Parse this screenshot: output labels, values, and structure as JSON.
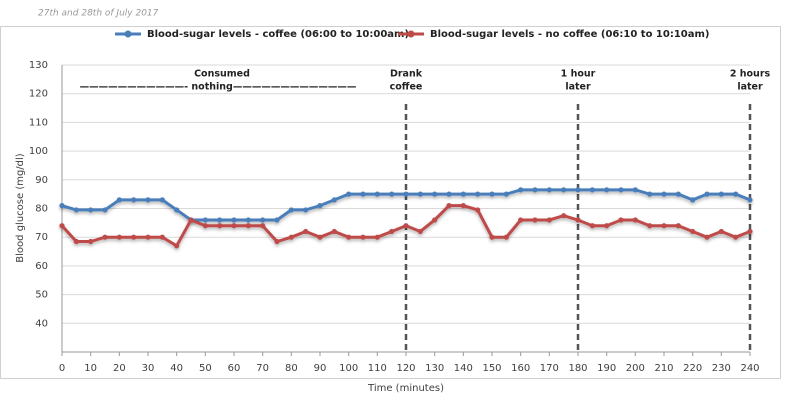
{
  "chart_data": {
    "type": "line",
    "subtitle": "27th and 28th of July 2017",
    "x_label": "Time (minutes)",
    "y_label": "Blood glucose (mg/dl)",
    "x": [
      0,
      5,
      10,
      15,
      20,
      25,
      30,
      35,
      40,
      45,
      50,
      55,
      60,
      65,
      70,
      75,
      80,
      85,
      90,
      95,
      100,
      105,
      110,
      115,
      120,
      125,
      130,
      135,
      140,
      145,
      150,
      155,
      160,
      165,
      170,
      175,
      180,
      185,
      190,
      195,
      200,
      205,
      210,
      215,
      220,
      225,
      230,
      235,
      240
    ],
    "series": [
      {
        "name": "Blood-sugar levels - coffee (06:00 to 10:00am)",
        "color": "#4a7ebb",
        "values": [
          81,
          79.5,
          79.5,
          79.5,
          83,
          83,
          83,
          83,
          79.5,
          76,
          76,
          76,
          76,
          76,
          76,
          76,
          79.5,
          79.5,
          81,
          83,
          85,
          85,
          85,
          85,
          85,
          85,
          85,
          85,
          85,
          85,
          85,
          85,
          86.5,
          86.5,
          86.5,
          86.5,
          86.5,
          86.5,
          86.5,
          86.5,
          86.5,
          85,
          85,
          85,
          83,
          85,
          85,
          85,
          83
        ]
      },
      {
        "name": "Blood-sugar levels - no coffee (06:10 to 10:10am)",
        "color": "#be4b48",
        "values": [
          74,
          68.5,
          68.5,
          70,
          70,
          70,
          70,
          70,
          67,
          76,
          74,
          74,
          74,
          74,
          74,
          68.5,
          70,
          72,
          70,
          72,
          70,
          70,
          70,
          72,
          74,
          72,
          76,
          81,
          81,
          79.5,
          70,
          70,
          76,
          76,
          76,
          77.5,
          76,
          74,
          74,
          76,
          76,
          74,
          74,
          74,
          72,
          70,
          72,
          70,
          72
        ]
      }
    ],
    "xlim": [
      0,
      240
    ],
    "xticks": [
      0,
      10,
      20,
      30,
      40,
      50,
      60,
      70,
      80,
      90,
      100,
      110,
      120,
      130,
      140,
      150,
      160,
      170,
      180,
      190,
      200,
      210,
      220,
      230,
      240
    ],
    "ylim": [
      30,
      130
    ],
    "yticks": [
      40,
      50,
      60,
      70,
      80,
      90,
      100,
      110,
      120,
      130
    ],
    "grid": true,
    "annotation": [
      "Consumed",
      "———————————- nothing—————————————"
    ],
    "markers": [
      {
        "x": 120,
        "label": [
          "Drank",
          "coffee"
        ]
      },
      {
        "x": 180,
        "label": [
          "1 hour",
          "later"
        ]
      },
      {
        "x": 240,
        "label": [
          "2 hours",
          "later"
        ]
      }
    ]
  }
}
